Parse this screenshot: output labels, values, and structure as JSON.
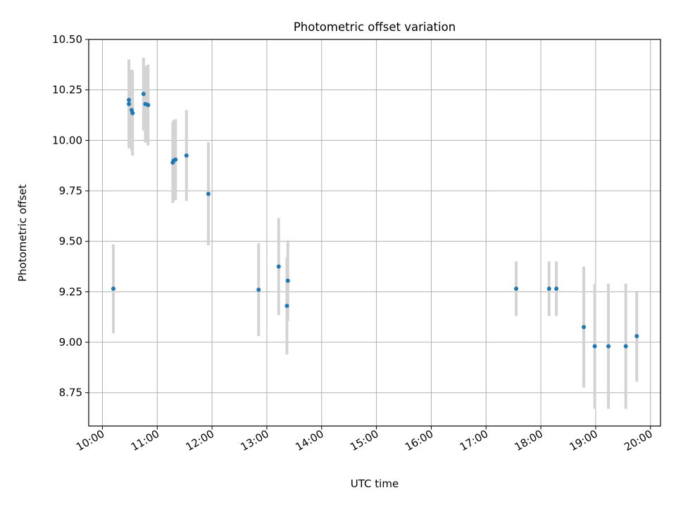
{
  "chart_data": {
    "type": "scatter",
    "title": "Photometric offset variation",
    "xlabel": "UTC time",
    "ylabel": "Photometric offset",
    "x_ticks": [
      "10:00",
      "11:00",
      "12:00",
      "13:00",
      "14:00",
      "15:00",
      "16:00",
      "17:00",
      "18:00",
      "19:00",
      "20:00"
    ],
    "y_ticks": [
      "8.75",
      "9.00",
      "9.25",
      "9.50",
      "9.75",
      "10.00",
      "10.25",
      "10.50"
    ],
    "xlim": [
      "09:45",
      "20:11"
    ],
    "ylim": [
      8.585,
      10.5
    ],
    "grid": true,
    "point_color": "#1f77b4",
    "errorbar_color": "#d3d3d3",
    "points": [
      {
        "x": "10:12",
        "y": 9.265,
        "yerr": 0.22
      },
      {
        "x": "10:29",
        "y": 10.18,
        "yerr": 0.22
      },
      {
        "x": "10:29",
        "y": 10.2,
        "yerr": 0.2
      },
      {
        "x": "10:32",
        "y": 10.15,
        "yerr": 0.2
      },
      {
        "x": "10:33",
        "y": 10.135,
        "yerr": 0.21
      },
      {
        "x": "10:45",
        "y": 10.23,
        "yerr": 0.18
      },
      {
        "x": "10:47",
        "y": 10.18,
        "yerr": 0.19
      },
      {
        "x": "10:50",
        "y": 10.175,
        "yerr": 0.2
      },
      {
        "x": "11:17",
        "y": 9.89,
        "yerr": 0.2
      },
      {
        "x": "11:18",
        "y": 9.9,
        "yerr": 0.2
      },
      {
        "x": "11:20",
        "y": 9.905,
        "yerr": 0.2
      },
      {
        "x": "11:32",
        "y": 9.925,
        "yerr": 0.225
      },
      {
        "x": "11:56",
        "y": 9.735,
        "yerr": 0.255
      },
      {
        "x": "12:51",
        "y": 9.26,
        "yerr": 0.23
      },
      {
        "x": "13:13",
        "y": 9.375,
        "yerr": 0.24
      },
      {
        "x": "13:22",
        "y": 9.18,
        "yerr": 0.24
      },
      {
        "x": "13:23",
        "y": 9.305,
        "yerr": 0.2
      },
      {
        "x": "17:33",
        "y": 9.265,
        "yerr": 0.135
      },
      {
        "x": "18:09",
        "y": 9.265,
        "yerr": 0.135
      },
      {
        "x": "18:17",
        "y": 9.265,
        "yerr": 0.135
      },
      {
        "x": "18:47",
        "y": 9.075,
        "yerr": 0.3
      },
      {
        "x": "18:59",
        "y": 8.98,
        "yerr": 0.31
      },
      {
        "x": "19:14",
        "y": 8.98,
        "yerr": 0.31
      },
      {
        "x": "19:33",
        "y": 8.98,
        "yerr": 0.31
      },
      {
        "x": "19:45",
        "y": 9.03,
        "yerr": 0.225
      }
    ]
  }
}
